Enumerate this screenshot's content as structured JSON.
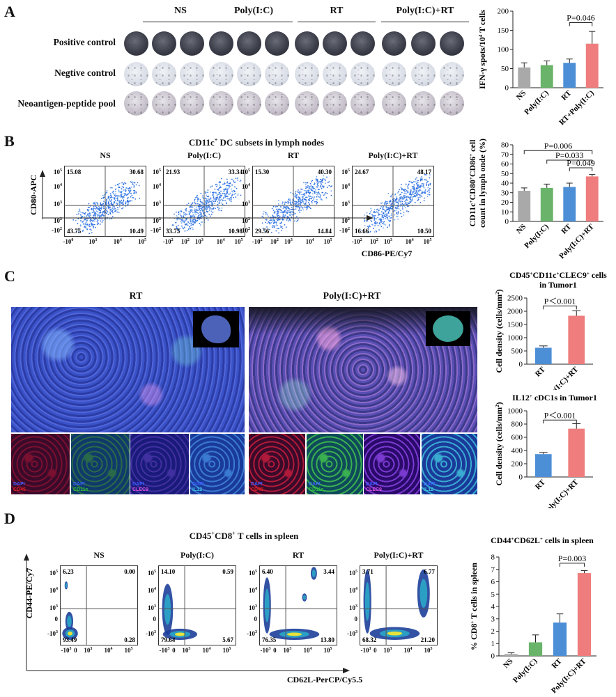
{
  "panelA": {
    "letter": "A",
    "groups": [
      "NS",
      "Poly(I:C)",
      "RT",
      "Poly(I:C)+RT"
    ],
    "row_labels": [
      "Positive control",
      "Negtive control",
      "Neoantigen-peptide pool"
    ]
  },
  "panelB": {
    "letter": "B",
    "title": "CD11c+ DC subsets in lymph nodes",
    "yaxis": "CD80-APC",
    "xaxis": "CD86-PE/Cy7",
    "plots": [
      {
        "name": "NS",
        "q": [
          "15.08",
          "30.68",
          "43.75",
          "10.49"
        ],
        "xticks": [
          "-10^0",
          "10^3",
          "10^4",
          "10^5"
        ]
      },
      {
        "name": "Poly(I:C)",
        "q": [
          "21.93",
          "33.34",
          "33.75",
          "10.98"
        ],
        "xticks": [
          "-10^2",
          "10^2",
          "10^3",
          "10^4",
          "10^5"
        ]
      },
      {
        "name": "RT",
        "q": [
          "15.30",
          "40.30",
          "29.56",
          "14.84"
        ],
        "xticks": [
          "-10^2",
          "10^2",
          "10^3",
          "10^4",
          "10^5"
        ]
      },
      {
        "name": "Poly(I:C)+RT",
        "q": [
          "24.67",
          "48.17",
          "16.66",
          "10.50"
        ],
        "xticks": [
          "-10^2",
          "10^2",
          "10^3",
          "10^4",
          "10^5"
        ]
      }
    ],
    "yticks": [
      "10^5",
      "10^4",
      "10^3",
      "10^2",
      "-10^2"
    ]
  },
  "panelC": {
    "letter": "C",
    "left_title": "RT",
    "right_title": "Poly(I:C)+RT",
    "channels_left": [
      {
        "l1": "DAPI",
        "l2": "CD45"
      },
      {
        "l1": "DAPI",
        "l2": "CD11c"
      },
      {
        "l1": "DAPI",
        "l2": "CLEC9"
      },
      {
        "l1": "DAPI",
        "l2": "IL12"
      }
    ],
    "channels_right": [
      {
        "l1": "DAPI",
        "l2": "CD45"
      },
      {
        "l1": "DAPI",
        "l2": "CD11c"
      },
      {
        "l1": "DAPI",
        "l2": "CLEC9"
      },
      {
        "l1": "DAPI",
        "l2": "IL12"
      }
    ]
  },
  "panelD": {
    "letter": "D",
    "title": "CD45+CD8+ T cells in spleen",
    "yaxis": "CD44-PE/Cy7",
    "xaxis": "CD62L-PerCP/Cy5.5",
    "plots": [
      {
        "name": "NS",
        "q": [
          "6.23",
          "0.00",
          "93.49",
          "0.28"
        ]
      },
      {
        "name": "Poly(I:C)",
        "q": [
          "14.10",
          "0.59",
          "79.64",
          "5.67"
        ]
      },
      {
        "name": "RT",
        "q": [
          "6.40",
          "3.44",
          "76.35",
          "13.80"
        ]
      },
      {
        "name": "Poly(I:C)+RT",
        "q": [
          "3.71",
          "6.77",
          "68.32",
          "21.20"
        ]
      }
    ],
    "yticks": [
      "10^5",
      "10^4",
      "10^3",
      "0",
      "-10^3"
    ],
    "xticks": [
      "-10^3",
      "0",
      "10^3",
      "10^4",
      "10^5"
    ]
  },
  "chart_data": [
    {
      "type": "bar",
      "categories": [
        "NS",
        "Poly(I:C)",
        "RT",
        "RT+Poly(I:C)"
      ],
      "values": [
        53,
        59,
        65,
        115
      ],
      "errors": [
        12,
        11,
        10,
        32
      ],
      "ylabel": "IFN-γ spots/10⁴ T cells",
      "ylim": [
        0,
        200
      ],
      "yticks": [
        0,
        50,
        100,
        150,
        200
      ],
      "annotations": [
        "P=0.046"
      ],
      "colors": [
        "#a9a9a9",
        "#6ab36a",
        "#4d8fd6",
        "#ef7d7d"
      ]
    },
    {
      "type": "bar",
      "categories": [
        "NS",
        "Poly(I:C)",
        "RT",
        "Poly(I:C)+RT"
      ],
      "values": [
        32,
        35,
        36,
        47
      ],
      "errors": [
        3,
        4,
        4,
        2
      ],
      "ylabel": "CD11c⁺CD80⁺CD86⁺ cell count in lymph onde (%)",
      "ylim": [
        0,
        80
      ],
      "yticks": [
        0,
        10,
        20,
        30,
        40,
        50,
        60,
        70,
        80
      ],
      "annotations": [
        "P=0.006",
        "P=0.033",
        "P=0.049"
      ],
      "colors": [
        "#a9a9a9",
        "#6ab36a",
        "#4d8fd6",
        "#ef7d7d"
      ]
    },
    {
      "type": "bar",
      "title": "CD45⁺CD11c⁺CLEC9⁺ cells in Tumor1",
      "categories": [
        "RT",
        "Poly(I:C)+RT"
      ],
      "values": [
        620,
        1830
      ],
      "errors": [
        70,
        190
      ],
      "ylabel": "Cell density (cells/mm²)",
      "ylim": [
        0,
        2500
      ],
      "yticks": [
        0,
        500,
        1000,
        1500,
        2000,
        2500
      ],
      "annotations": [
        "P＜0.001"
      ],
      "colors": [
        "#4d8fd6",
        "#ef7d7d"
      ]
    },
    {
      "type": "bar",
      "title": "IL12⁺ cDC1s in Tumor1",
      "categories": [
        "RT",
        "Poly(I:C)+RT"
      ],
      "values": [
        345,
        730
      ],
      "errors": [
        25,
        75
      ],
      "ylabel": "Cell density (cells/mm²)",
      "ylim": [
        0,
        1000
      ],
      "yticks": [
        0,
        200,
        400,
        600,
        800,
        1000
      ],
      "annotations": [
        "P＜0.001"
      ],
      "colors": [
        "#4d8fd6",
        "#ef7d7d"
      ]
    },
    {
      "type": "bar",
      "title": "CD44⁺CD62L⁺ cells in spleen",
      "categories": [
        "NS",
        "Poly(I:C)",
        "RT",
        "Poly(I:C)+RT"
      ],
      "values": [
        0.15,
        1.1,
        2.7,
        6.7
      ],
      "errors": [
        0.1,
        0.6,
        0.7,
        0.2
      ],
      "ylabel": "% CD8⁺ T cells in spleen",
      "ylim": [
        0,
        8
      ],
      "yticks": [
        0,
        1,
        2,
        3,
        4,
        5,
        6,
        7,
        8
      ],
      "annotations": [
        "P=0.003"
      ],
      "colors": [
        "#a9a9a9",
        "#6ab36a",
        "#4d8fd6",
        "#ef7d7d"
      ]
    }
  ]
}
